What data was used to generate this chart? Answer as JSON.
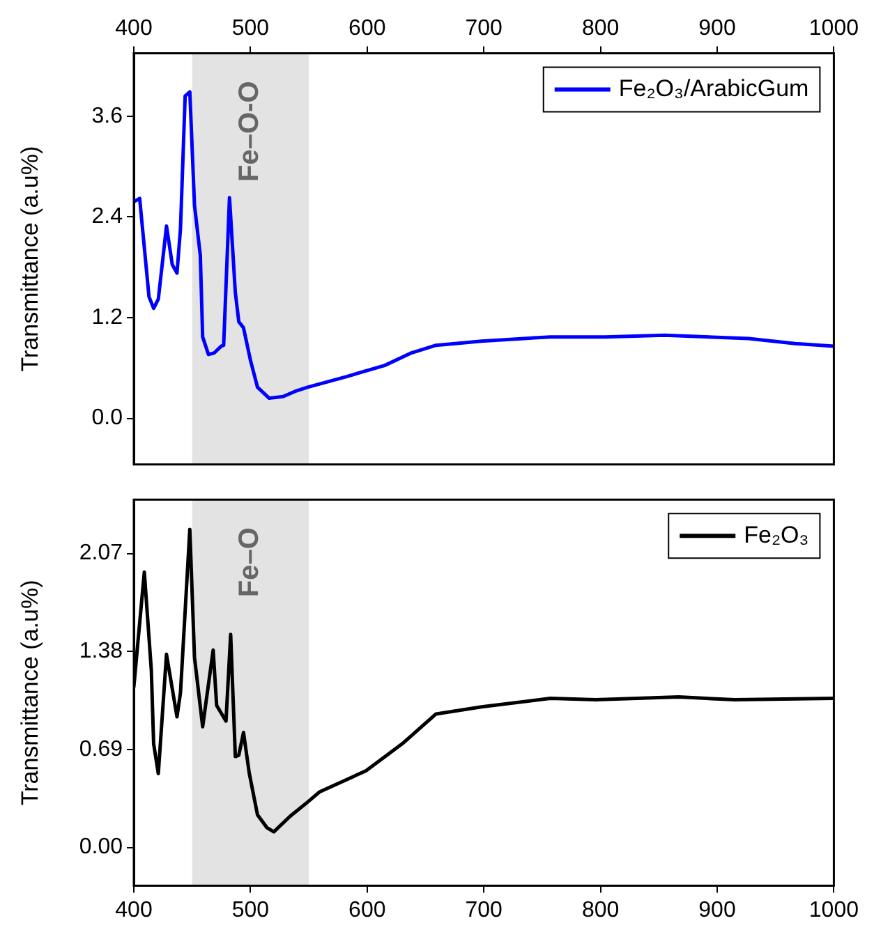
{
  "chart_data": [
    {
      "type": "line",
      "ylabel": "Transmittance (a.u%)",
      "xlim": [
        400,
        1000
      ],
      "xticks": [
        400,
        500,
        600,
        700,
        800,
        900,
        1000
      ],
      "ylim": [
        -0.55,
        4.35
      ],
      "yticks": [
        {
          "value": 0,
          "label": "0.0"
        },
        1.2,
        2.4,
        3.6
      ],
      "legend": "top right",
      "marker": "none",
      "line_style": "solid",
      "bands": [
        {
          "axis": "x",
          "from": 450,
          "to": 550,
          "label": "Fe–O-O",
          "color": "#e3e3e3"
        }
      ],
      "series": [
        {
          "name": "Fe₂O₃/ArabicGum",
          "color": "#0000ff",
          "x": [
            400,
            405,
            413,
            417,
            421,
            428,
            433,
            437,
            440,
            444,
            448,
            452,
            457,
            459,
            464,
            469,
            475,
            477,
            482,
            487,
            490,
            494,
            500,
            506,
            516,
            528,
            538,
            549,
            583,
            615,
            638,
            659,
            698,
            757,
            804,
            855,
            927,
            967,
            1000
          ],
          "values": [
            2.58,
            2.62,
            1.45,
            1.31,
            1.42,
            2.29,
            1.83,
            1.73,
            2.26,
            3.84,
            3.89,
            2.54,
            1.94,
            0.97,
            0.76,
            0.78,
            0.86,
            0.87,
            2.63,
            1.5,
            1.15,
            1.08,
            0.69,
            0.37,
            0.24,
            0.26,
            0.32,
            0.37,
            0.5,
            0.63,
            0.78,
            0.87,
            0.92,
            0.97,
            0.97,
            0.99,
            0.95,
            0.89,
            0.86
          ]
        }
      ]
    },
    {
      "type": "line",
      "ylabel": "Transmittance (a.u%)",
      "xlim": [
        400,
        1000
      ],
      "xticks": [
        400,
        500,
        600,
        700,
        800,
        900,
        1000
      ],
      "ylim": [
        -0.27,
        2.45
      ],
      "yticks": [
        {
          "value": 0,
          "label": "0.00"
        },
        0.69,
        1.38,
        2.07
      ],
      "legend": "top right",
      "marker": "none",
      "line_style": "solid",
      "bands": [
        {
          "axis": "x",
          "from": 450,
          "to": 550,
          "label": "Fe–O",
          "color": "#e3e3e3"
        }
      ],
      "series": [
        {
          "name": "Fe₂O₃",
          "color": "#000000",
          "x": [
            400,
            409,
            415,
            417,
            421,
            428,
            437,
            440,
            448,
            452,
            459,
            468,
            471,
            479,
            483,
            487,
            490,
            494,
            499,
            506,
            514,
            520,
            534,
            549,
            559,
            599,
            630,
            659,
            698,
            757,
            796,
            867,
            915,
            1000
          ],
          "values": [
            1.13,
            1.94,
            1.25,
            0.73,
            0.52,
            1.36,
            0.92,
            1.09,
            2.24,
            1.34,
            0.85,
            1.39,
            1.0,
            0.89,
            1.5,
            0.64,
            0.65,
            0.81,
            0.52,
            0.23,
            0.14,
            0.11,
            0.22,
            0.32,
            0.39,
            0.54,
            0.73,
            0.94,
            0.99,
            1.05,
            1.04,
            1.06,
            1.04,
            1.05
          ]
        }
      ]
    }
  ]
}
